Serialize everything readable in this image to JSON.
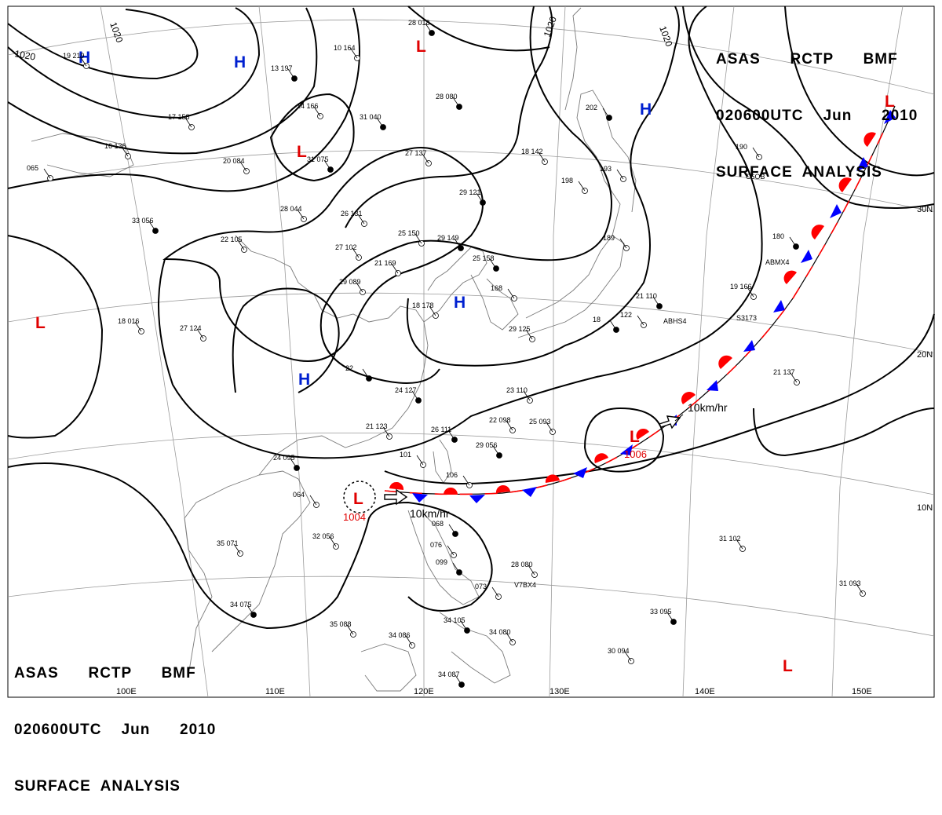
{
  "title": {
    "line1": [
      "ASAS",
      "RCTP",
      "BMF"
    ],
    "line2": [
      "020600UTC",
      "Jun",
      "2010"
    ],
    "line3": "SURFACE  ANALYSIS"
  },
  "colors": {
    "low": "#e00000",
    "high": "#0020d0",
    "warm_front": "#ff0000",
    "cold_front": "#0000ff",
    "isobar": "#000000",
    "grid": "#999999",
    "coast": "#777777"
  },
  "longitude_labels": [
    "100E",
    "110E",
    "120E",
    "130E",
    "140E",
    "150E"
  ],
  "latitude_labels": [
    "30N",
    "20N",
    "10N"
  ],
  "isobar_labels": [
    "1020",
    "1020",
    "1020",
    "1020"
  ],
  "pressure_centers": [
    {
      "type": "H"
    },
    {
      "type": "H"
    },
    {
      "type": "H"
    },
    {
      "type": "H"
    },
    {
      "type": "H"
    },
    {
      "type": "L"
    },
    {
      "type": "L"
    },
    {
      "type": "L"
    },
    {
      "type": "L"
    },
    {
      "type": "L"
    },
    {
      "type": "L"
    },
    {
      "type": "L"
    }
  ],
  "low_pressures": [
    "1004",
    "1006"
  ],
  "motion_labels": [
    "10km/hr",
    "10km/hr"
  ],
  "stations": [
    "28  018",
    "10  164",
    "19  219",
    "13  197",
    "14  166",
    "17  158",
    "31  040",
    "20  084",
    "16  136",
    "28  080",
    "27  137",
    "18  142",
    "202",
    "193",
    "190",
    "31  075",
    "28  044",
    "26  131",
    "29  121",
    "198",
    "065",
    "33  056",
    "22  105",
    "25  150",
    "29  149",
    "27  102",
    "21  169",
    "25  158",
    "168",
    "189",
    "180",
    "29  089",
    "18  178",
    "21  110",
    "122",
    "19  166",
    "18",
    "18  016",
    "27  124",
    "22",
    "29  125",
    "21  137",
    "24  127",
    "23  110",
    "21  123",
    "26  111",
    "22  098",
    "25  093",
    "24  095",
    "101",
    "106",
    "29  056",
    "064",
    "32  056",
    "068",
    "35  071",
    "076",
    "099",
    "28  080",
    "31  102",
    "34  075",
    "35  088",
    "34  086",
    "34  105",
    "34  080",
    "073",
    "33  095",
    "31  093",
    "30  094",
    "34  087"
  ],
  "ship_ids": [
    "ABMX4",
    "ABHS4",
    "S3173",
    "C6OB",
    "V7BX4"
  ]
}
